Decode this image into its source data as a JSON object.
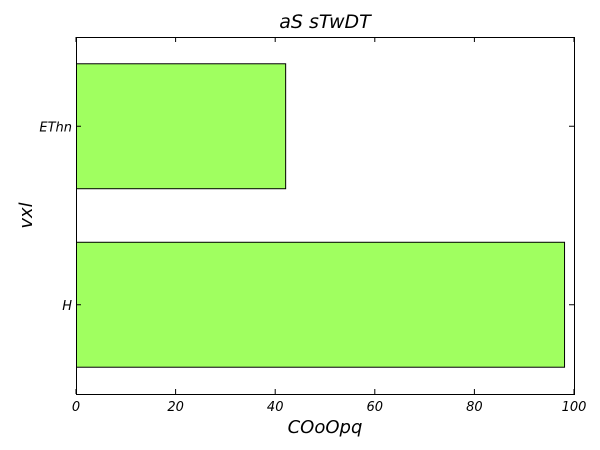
{
  "chart_data": {
    "type": "bar",
    "orientation": "horizontal",
    "title": "aS sTwDT",
    "xlabel": "COoOpq",
    "ylabel": "vxl",
    "categories": [
      "H",
      "EThn"
    ],
    "values": [
      98,
      42
    ],
    "xlim": [
      0,
      100
    ],
    "xticks": [
      0,
      20,
      40,
      60,
      80,
      100
    ],
    "bar_color": "#a0ff60",
    "grid": false,
    "legend": "none"
  }
}
